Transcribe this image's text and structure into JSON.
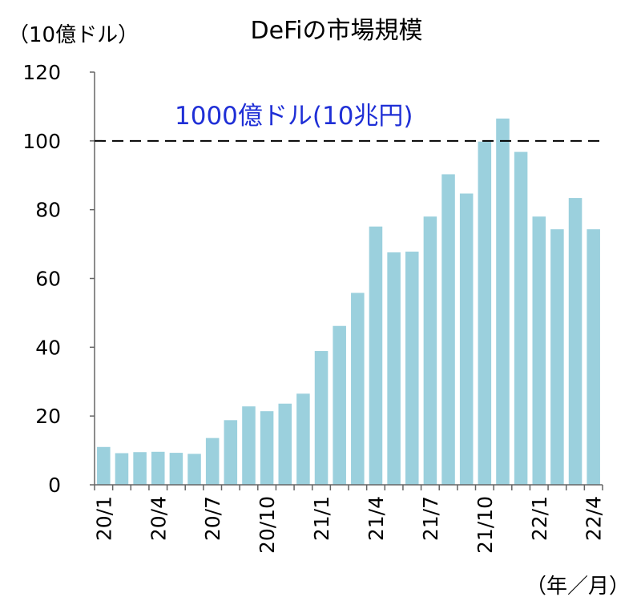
{
  "chart_data": {
    "type": "bar",
    "title": "DeFiの市場規模",
    "ylabel": "（10億ドル）",
    "xlabel": "（年／月）",
    "ylim": [
      0,
      120
    ],
    "yticks": [
      "0",
      "20",
      "40",
      "60",
      "80",
      "100",
      "120"
    ],
    "categories": [
      "20/1",
      "20/2",
      "20/3",
      "20/4",
      "20/5",
      "20/6",
      "20/7",
      "20/8",
      "20/9",
      "20/10",
      "20/11",
      "20/12",
      "21/1",
      "21/2",
      "21/3",
      "21/4",
      "21/5",
      "21/6",
      "21/7",
      "21/8",
      "21/9",
      "21/10",
      "21/11",
      "21/12",
      "22/1",
      "22/2",
      "22/3",
      "22/4"
    ],
    "xtick_labels": [
      "20/1",
      "",
      "",
      "20/4",
      "",
      "",
      "20/7",
      "",
      "",
      "20/10",
      "",
      "",
      "21/1",
      "",
      "",
      "21/4",
      "",
      "",
      "21/7",
      "",
      "",
      "21/10",
      "",
      "",
      "22/1",
      "",
      "",
      "22/4"
    ],
    "values": [
      11,
      9.2,
      9.5,
      9.6,
      9.3,
      9,
      13.6,
      18.8,
      22.8,
      21.4,
      23.6,
      26.5,
      38.9,
      46.2,
      55.8,
      75.1,
      67.6,
      67.8,
      78,
      90.3,
      84.7,
      99.8,
      106.5,
      96.8,
      78,
      74.3,
      83.4,
      74.3
    ],
    "reference_line": {
      "value": 100,
      "label": "1000億ドル(10兆円)",
      "style": "dashed"
    },
    "grid": false,
    "legend": "none",
    "colors": {
      "bar": "#9bd0dd",
      "reference_label": "#1f2fd6"
    }
  }
}
